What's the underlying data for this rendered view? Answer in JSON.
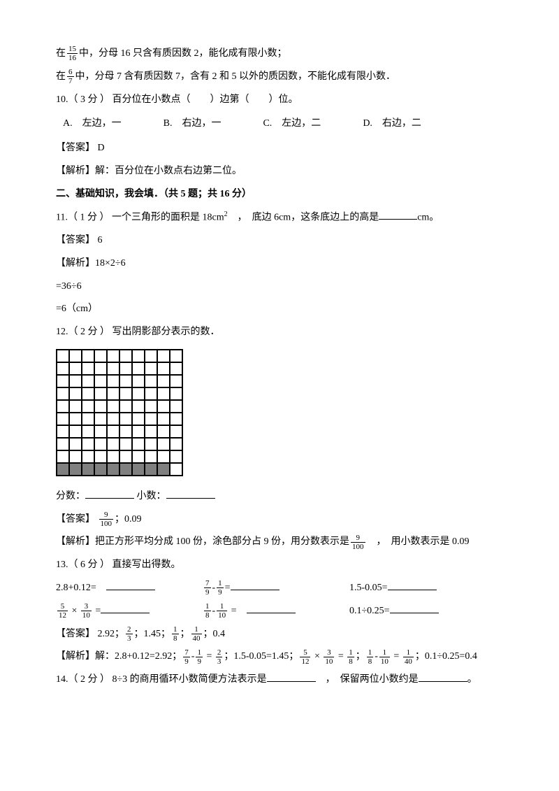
{
  "p1": {
    "pre": "在",
    "num": "15",
    "den": "16",
    "post": "中，分母 16 只含有质因数 2，能化成有限小数；"
  },
  "p2": {
    "pre": "在",
    "num": "6",
    "den": "7",
    "post": "中，分母 7 含有质因数 7，含有 2 和 5 以外的质因数，不能化成有限小数．"
  },
  "q10": {
    "stem": "10.（ 3 分 ） 百分位在小数点（　　）边第（　　）位。",
    "optA": "A.　左边，一",
    "optB": "B.　右边，一",
    "optC": "C.　左边，二",
    "optD": "D.　右边，二",
    "ans": "【答案】 D",
    "exp": "【解析】解：百分位在小数点右边第二位。"
  },
  "sec2": "二、基础知识，我会填．（共 5 题；共 16 分）",
  "q11": {
    "stem_a": "11.（ 1 分 ） 一个三角形的面积是 18cm",
    "sup": "2",
    "stem_b": "　，　底边 6cm，这条底边上的高是",
    "stem_c": "cm。",
    "ans": "【答案】 6",
    "exp_label": "【解析】",
    "e1": "18×2÷6",
    "e2": "=36÷6",
    "e3": "=6（cm）"
  },
  "q12": {
    "stem": "12.（ 2 分 ） 写出阴影部分表示的数．",
    "grid_rows": 10,
    "grid_cols": 10,
    "shaded_bottom_cols": 9,
    "shaded_color": "#808080",
    "line_a": "分数：",
    "line_b": "小数：",
    "ans_label": "【答案】 ",
    "ans_num": "9",
    "ans_den": "100",
    "ans_post": "；0.09",
    "exp_a": "【解析】把正方形平均分成 100 份，涂色部分占 9 份，用分数表示是",
    "exp_num": "9",
    "exp_den": "100",
    "exp_b": "　，　用小数表示是 0.09"
  },
  "q13": {
    "stem": "13.（ 6 分 ） 直接写出得数。",
    "r1c1": "2.8+0.12=　",
    "r1c2_n": "7",
    "r1c2_d": "9",
    "r1c2_op": "-",
    "r1c2_n2": "1",
    "r1c2_d2": "9",
    "r1c2_eq": "=",
    "r1c3": "1.5-0.05=",
    "r2c1_n": "5",
    "r2c1_d": "12",
    "r2c1_op": " × ",
    "r2c1_n2": "3",
    "r2c1_d2": "10",
    "r2c1_eq": " =",
    "r2c2_n": "1",
    "r2c2_d": "8",
    "r2c2_op": "-",
    "r2c2_n2": "1",
    "r2c2_d2": "10",
    "r2c2_eq": " =　",
    "r2c3": "0.1÷0.25=",
    "ans_label": "【答案】 ",
    "ans_a": "2.92；",
    "ans_f1n": "2",
    "ans_f1d": "3",
    "ans_b": "；1.45；",
    "ans_f2n": "1",
    "ans_f2d": "8",
    "ans_c": "；",
    "ans_f3n": "1",
    "ans_f3d": "40",
    "ans_d": "；0.4",
    "exp_a": "【解析】解：2.8+0.12=2.92；",
    "exp_f1n": "7",
    "exp_f1d": "9",
    "exp_op1": "-",
    "exp_f2n": "1",
    "exp_f2d": "9",
    "exp_eq1": " = ",
    "exp_f3n": "2",
    "exp_f3d": "3",
    "exp_b": "；1.5-0.05=1.45；",
    "exp_f4n": "5",
    "exp_f4d": "12",
    "exp_op2": " × ",
    "exp_f5n": "3",
    "exp_f5d": "10",
    "exp_eq2": " = ",
    "exp_f6n": "1",
    "exp_f6d": "8",
    "exp_c": "；",
    "exp_f7n": "1",
    "exp_f7d": "8",
    "exp_op3": "-",
    "exp_f8n": "1",
    "exp_f8d": "10",
    "exp_eq3": " = ",
    "exp_f9n": "1",
    "exp_f9d": "40",
    "exp_d": "；0.1÷0.25=0.4"
  },
  "q14": {
    "a": "14.（ 2 分 ） 8÷3 的商用循环小数简便方法表示是",
    "b": "　，　保留两位小数约是",
    "c": "。"
  }
}
